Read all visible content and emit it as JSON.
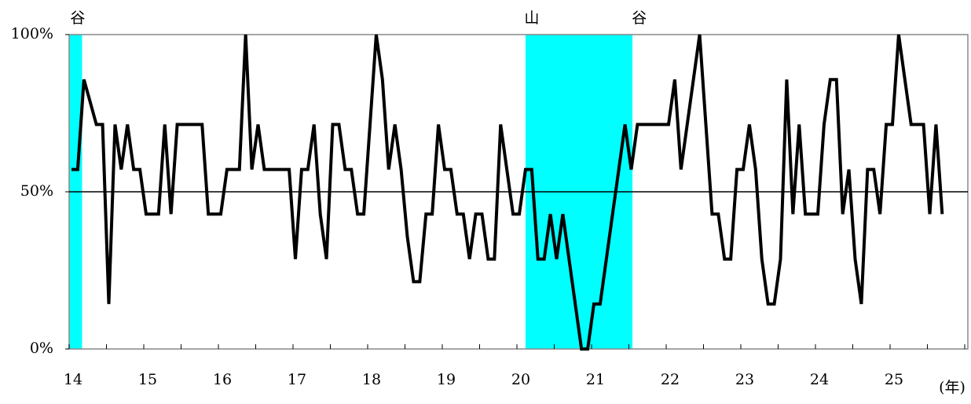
{
  "chart_data": {
    "type": "line",
    "x_label": "(年)",
    "categories": [
      "14",
      null,
      null,
      null,
      null,
      null,
      null,
      null,
      null,
      null,
      null,
      null,
      "15",
      null,
      null,
      null,
      null,
      null,
      null,
      null,
      null,
      null,
      null,
      null,
      "16",
      null,
      null,
      null,
      null,
      null,
      null,
      null,
      null,
      null,
      null,
      null,
      "17",
      null,
      null,
      null,
      null,
      null,
      null,
      null,
      null,
      null,
      null,
      null,
      "18",
      null,
      null,
      null,
      null,
      null,
      null,
      null,
      null,
      null,
      null,
      null,
      "19",
      null,
      null,
      null,
      null,
      null,
      null,
      null,
      null,
      null,
      null,
      null,
      "20",
      null,
      null,
      null,
      null,
      null,
      null,
      null,
      null,
      null,
      null,
      null,
      "21",
      null,
      null,
      null,
      null,
      null,
      null,
      null,
      null,
      null,
      null,
      null,
      "22",
      null,
      null,
      null,
      null,
      null,
      null,
      null,
      null,
      null,
      null,
      null,
      "23",
      null,
      null,
      null,
      null,
      null,
      null,
      null,
      null,
      null,
      null,
      null,
      "24",
      null,
      null,
      null,
      null,
      null,
      null,
      null,
      null,
      null,
      null,
      null,
      "25",
      null,
      null,
      null,
      null,
      null,
      null,
      null,
      null
    ],
    "values": [
      57.1,
      57.1,
      85.7,
      78.6,
      71.4,
      71.4,
      14.3,
      71.4,
      57.1,
      71.4,
      57.1,
      57.1,
      42.9,
      42.9,
      42.9,
      71.4,
      42.9,
      71.4,
      71.4,
      71.4,
      71.4,
      71.4,
      42.9,
      42.9,
      42.9,
      57.1,
      57.1,
      57.1,
      100,
      57.1,
      71.4,
      57.1,
      57.1,
      57.1,
      57.1,
      57.1,
      28.6,
      57.1,
      57.1,
      71.4,
      42.9,
      28.6,
      71.4,
      71.4,
      57.1,
      57.1,
      42.9,
      42.9,
      71.4,
      100,
      85.7,
      57.1,
      71.4,
      57.1,
      35.7,
      21.4,
      21.4,
      42.9,
      42.9,
      71.4,
      57.1,
      57.1,
      42.9,
      42.9,
      28.6,
      42.9,
      42.9,
      28.6,
      28.6,
      71.4,
      57.1,
      42.9,
      42.9,
      57.1,
      57.1,
      28.6,
      28.6,
      42.9,
      28.6,
      42.9,
      28.6,
      14.3,
      0,
      0,
      14.3,
      14.3,
      28.6,
      42.9,
      57.1,
      71.4,
      57.1,
      71.4,
      71.4,
      71.4,
      71.4,
      71.4,
      71.4,
      85.7,
      57.1,
      71.4,
      85.7,
      100,
      71.4,
      42.9,
      42.9,
      28.6,
      28.6,
      57.1,
      57.1,
      71.4,
      57.1,
      28.6,
      14.3,
      14.3,
      28.6,
      85.7,
      42.9,
      71.4,
      42.9,
      42.9,
      42.9,
      71.4,
      85.7,
      85.7,
      42.9,
      57.1,
      28.6,
      14.3,
      57.1,
      57.1,
      42.9,
      71.4,
      71.4,
      100,
      85.7,
      71.4,
      71.4,
      71.4,
      42.9,
      71.4,
      42.9
    ],
    "color": "#000000",
    "ylim": [
      0,
      100
    ],
    "yticks": [
      {
        "value": 0,
        "label": "0%"
      },
      {
        "value": 50,
        "label": "50%"
      },
      {
        "value": 100,
        "label": "100%"
      }
    ],
    "reference_line": 50,
    "shaded_spans": [
      {
        "start": -0.4,
        "end": 1.7,
        "color": "#00ffff"
      },
      {
        "start": 73,
        "end": 90.2,
        "color": "#00ffff"
      }
    ],
    "span_labels": [
      {
        "text": "谷",
        "at": 1
      },
      {
        "text": "山",
        "at": 74
      },
      {
        "text": "谷",
        "at": 91.3
      }
    ]
  }
}
